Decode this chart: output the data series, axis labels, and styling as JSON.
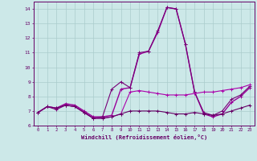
{
  "xlabel": "Windchill (Refroidissement éolien,°C)",
  "bg_color": "#cce8e8",
  "grid_color": "#aacccc",
  "xlim": [
    -0.5,
    23.5
  ],
  "ylim": [
    6,
    14.5
  ],
  "xticks": [
    0,
    1,
    2,
    3,
    4,
    5,
    6,
    7,
    8,
    9,
    10,
    11,
    12,
    13,
    14,
    15,
    16,
    17,
    18,
    19,
    20,
    21,
    22,
    23
  ],
  "yticks": [
    6,
    7,
    8,
    9,
    10,
    11,
    12,
    13,
    14
  ],
  "series": [
    {
      "y": [
        6.9,
        7.3,
        7.2,
        7.5,
        7.4,
        7.0,
        6.6,
        6.6,
        6.7,
        8.5,
        8.6,
        10.9,
        11.1,
        12.4,
        14.1,
        14.0,
        11.6,
        8.3,
        6.8,
        6.6,
        6.8,
        7.6,
        8.0,
        8.6
      ],
      "color": "#990099",
      "lw": 1.0
    },
    {
      "y": [
        6.9,
        7.3,
        7.1,
        7.4,
        7.3,
        6.9,
        6.5,
        6.6,
        8.5,
        9.0,
        8.6,
        11.0,
        11.1,
        12.5,
        14.1,
        14.0,
        11.6,
        8.3,
        6.9,
        6.7,
        7.0,
        7.8,
        8.1,
        8.7
      ],
      "color": "#770077",
      "lw": 0.8
    },
    {
      "y": [
        6.9,
        7.3,
        7.2,
        7.4,
        7.3,
        6.9,
        6.5,
        6.5,
        6.6,
        6.8,
        8.3,
        8.4,
        8.3,
        8.2,
        8.1,
        8.1,
        8.1,
        8.2,
        8.3,
        8.3,
        8.4,
        8.5,
        8.6,
        8.8
      ],
      "color": "#aa00aa",
      "lw": 0.8
    },
    {
      "y": [
        6.9,
        7.3,
        7.2,
        7.4,
        7.3,
        6.9,
        6.5,
        6.5,
        6.6,
        6.8,
        7.0,
        7.0,
        7.0,
        7.0,
        6.9,
        6.8,
        6.8,
        6.9,
        6.8,
        6.7,
        6.8,
        7.0,
        7.2,
        7.4
      ],
      "color": "#660066",
      "lw": 0.8
    }
  ]
}
